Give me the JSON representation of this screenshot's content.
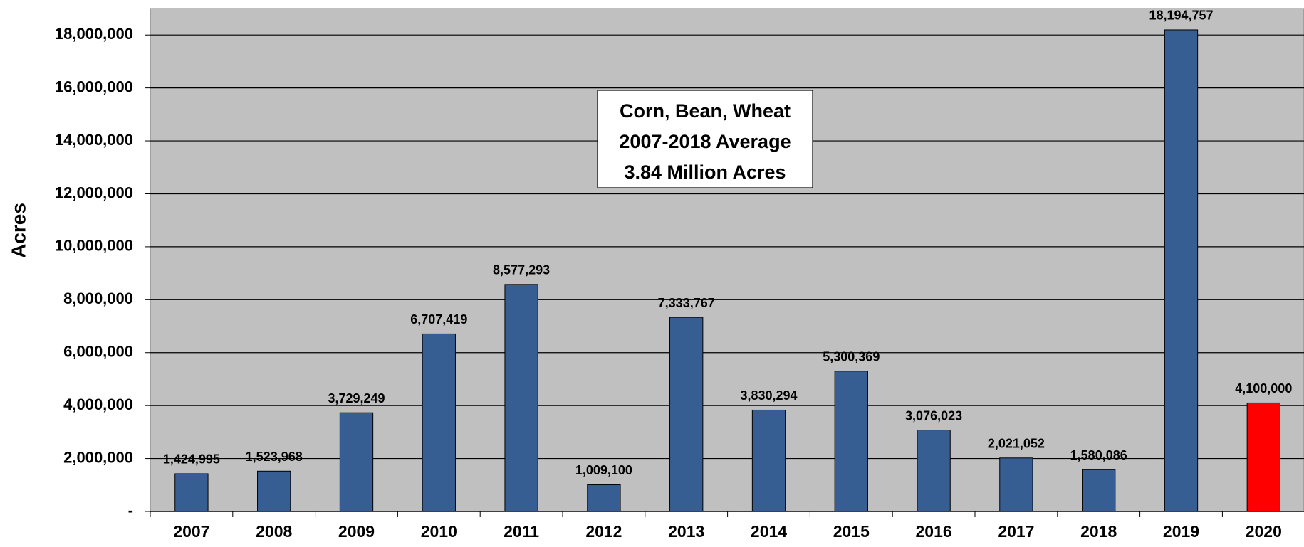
{
  "chart_data": {
    "type": "bar",
    "y_label": "Acres",
    "annotation": [
      "Corn, Bean, Wheat",
      "2007-2018  Average",
      "3.84 Million Acres"
    ],
    "categories": [
      "2007",
      "2008",
      "2009",
      "2010",
      "2011",
      "2012",
      "2013",
      "2014",
      "2015",
      "2016",
      "2017",
      "2018",
      "2019",
      "2020"
    ],
    "values": [
      1424995,
      1523968,
      3729249,
      6707419,
      8577293,
      1009100,
      7333767,
      3830294,
      5300369,
      3076023,
      2021052,
      1580086,
      18194757,
      4100000
    ],
    "value_labels": [
      "1,424,995",
      "1,523,968",
      "3,729,249",
      "6,707,419",
      "8,577,293",
      "1,009,100",
      "7,333,767",
      "3,830,294",
      "5,300,369",
      "3,076,023",
      "2,021,052",
      "1,580,086",
      "18,194,757",
      "4,100,000"
    ],
    "colors": [
      "#375e92",
      "#375e92",
      "#375e92",
      "#375e92",
      "#375e92",
      "#375e92",
      "#375e92",
      "#375e92",
      "#375e92",
      "#375e92",
      "#375e92",
      "#375e92",
      "#375e92",
      "#ff0000"
    ],
    "ylim": [
      0,
      19000000
    ],
    "yticks": [
      {
        "value": 0,
        "label": "-"
      },
      {
        "value": 2000000,
        "label": "2,000,000"
      },
      {
        "value": 4000000,
        "label": "4,000,000"
      },
      {
        "value": 6000000,
        "label": "6,000,000"
      },
      {
        "value": 8000000,
        "label": "8,000,000"
      },
      {
        "value": 10000000,
        "label": "10,000,000"
      },
      {
        "value": 12000000,
        "label": "12,000,000"
      },
      {
        "value": 14000000,
        "label": "14,000,000"
      },
      {
        "value": 16000000,
        "label": "16,000,000"
      },
      {
        "value": 18000000,
        "label": "18,000,000"
      }
    ],
    "grid": true,
    "background": "#c0c0c0"
  }
}
